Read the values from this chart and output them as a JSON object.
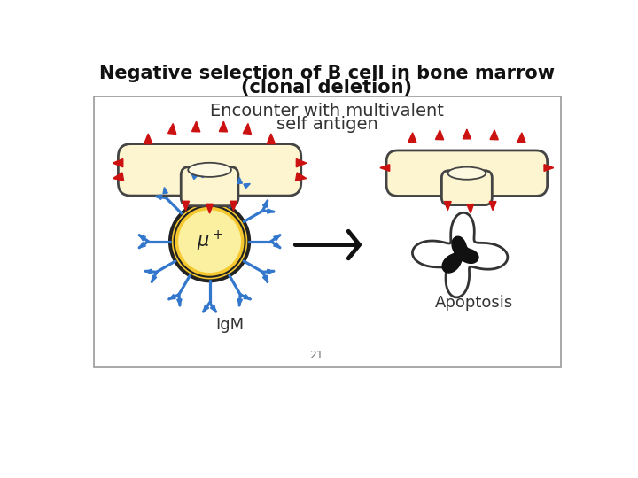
{
  "title_line1": "Negative selection of B cell in bone marrow",
  "title_line2": "(clonal deletion)",
  "title_fontsize": 15,
  "subtitle_line1": "Encounter with multivalent",
  "subtitle_line2": "self antigen",
  "subtitle_fontsize": 14,
  "label_igm": "IgM",
  "label_apoptosis": "Apoptosis",
  "slide_number": "21",
  "bg_color": "#ffffff",
  "box_edge_color": "#999999",
  "antigen_fill": "#fdf5d0",
  "antigen_edge": "#444444",
  "inner_ellipse_fill": "#fdf8e0",
  "cell_outer_fill": "#f5c830",
  "cell_outer_edge": "#222222",
  "cell_inner_fill": "#faf0a0",
  "spike_color": "#cc1111",
  "antibody_color": "#3377cc",
  "arrow_color": "#111111",
  "apop_outer_fill": "#ffffff",
  "apop_inner_fill": "#111111",
  "text_color": "#333333"
}
